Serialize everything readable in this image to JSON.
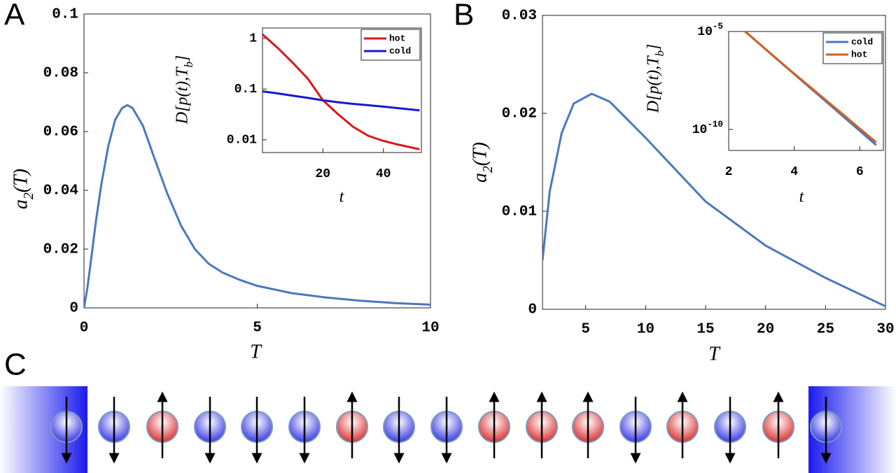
{
  "panels": [
    "A",
    "B",
    "C"
  ],
  "chart_data": [
    {
      "type": "line",
      "xlabel": "T",
      "ylabel": "a_{2}(T)",
      "x": [
        0,
        0.1,
        0.2,
        0.35,
        0.5,
        0.7,
        0.9,
        1.1,
        1.25,
        1.4,
        1.7,
        2,
        2.4,
        2.8,
        3.2,
        3.6,
        4,
        4.5,
        5,
        6,
        7,
        8,
        9,
        10
      ],
      "values": [
        0,
        0.007,
        0.016,
        0.03,
        0.042,
        0.055,
        0.064,
        0.068,
        0.069,
        0.068,
        0.062,
        0.052,
        0.039,
        0.028,
        0.02,
        0.015,
        0.012,
        0.0095,
        0.0075,
        0.005,
        0.0035,
        0.0024,
        0.0016,
        0.0011
      ],
      "color": "#4a78c0",
      "xlim": [
        0,
        10
      ],
      "xticks": [
        0,
        5,
        10
      ],
      "ylim": [
        0,
        0.1
      ],
      "yticks": [
        0,
        0.02,
        0.04,
        0.06,
        0.08,
        0.1
      ]
    },
    {
      "type": "line",
      "xlabel": "t",
      "ylabel": "D[p(t),T_{b}]",
      "log_y": true,
      "legend": "upper right",
      "x": [
        0,
        5,
        10,
        15,
        20,
        25,
        30,
        35,
        40,
        45,
        52
      ],
      "series": [
        {
          "name": "hot",
          "color": "#d81818",
          "values": [
            1.2,
            0.65,
            0.33,
            0.16,
            0.06,
            0.032,
            0.018,
            0.012,
            0.0095,
            0.008,
            0.0065
          ]
        },
        {
          "name": "cold",
          "color": "#1818d0",
          "values": [
            0.09,
            0.082,
            0.074,
            0.067,
            0.06,
            0.055,
            0.051,
            0.048,
            0.045,
            0.042,
            0.038
          ]
        }
      ],
      "xlim": [
        0,
        52.6
      ],
      "xticks": [
        20,
        40
      ],
      "ylim": [
        0.0056,
        1.6
      ],
      "yticks": [
        0.01,
        0.1,
        1
      ]
    },
    {
      "type": "line",
      "xlabel": "T",
      "ylabel": "a_{2}(T)",
      "x": [
        1.4,
        2,
        3,
        4,
        5.5,
        7,
        10,
        15,
        20,
        25,
        30
      ],
      "values": [
        0.005,
        0.012,
        0.018,
        0.021,
        0.022,
        0.0212,
        0.0175,
        0.011,
        0.0065,
        0.0032,
        0.0003
      ],
      "color": "#4a78c0",
      "xlim": [
        1.4,
        30
      ],
      "xticks": [
        5,
        10,
        15,
        20,
        25,
        30
      ],
      "ylim": [
        0,
        0.03
      ],
      "yticks": [
        0,
        0.01,
        0.02,
        0.03
      ]
    },
    {
      "type": "line",
      "xlabel": "t",
      "ylabel": "D[p(t),T_{b}]",
      "log_y": true,
      "legend": "upper right",
      "x": [
        2.5,
        3,
        3.5,
        4,
        4.5,
        5,
        5.5,
        6,
        6.5
      ],
      "series": [
        {
          "name": "cold",
          "color": "#4a78c0",
          "values": [
            1e-05,
            1.9e-06,
            3.5e-07,
            6.7e-08,
            1.26e-08,
            2.4e-09,
            4.5e-10,
            8.5e-11,
            1.6e-11
          ]
        },
        {
          "name": "hot",
          "color": "#d06020",
          "values": [
            1e-05,
            1.9e-06,
            3.6e-07,
            7e-08,
            1.4e-08,
            2.8e-09,
            5.6e-10,
            1.1e-10,
            2.2e-11
          ]
        }
      ],
      "xlim": [
        2,
        6.72
      ],
      "xticks": [
        2,
        4,
        6
      ],
      "ylim": [
        8.5e-12,
        1e-05
      ],
      "yticks": [
        {
          "value": 1e-10,
          "label": "10^{-10}"
        },
        {
          "value": 1e-05,
          "label": "10^{-5}"
        }
      ]
    }
  ]
}
